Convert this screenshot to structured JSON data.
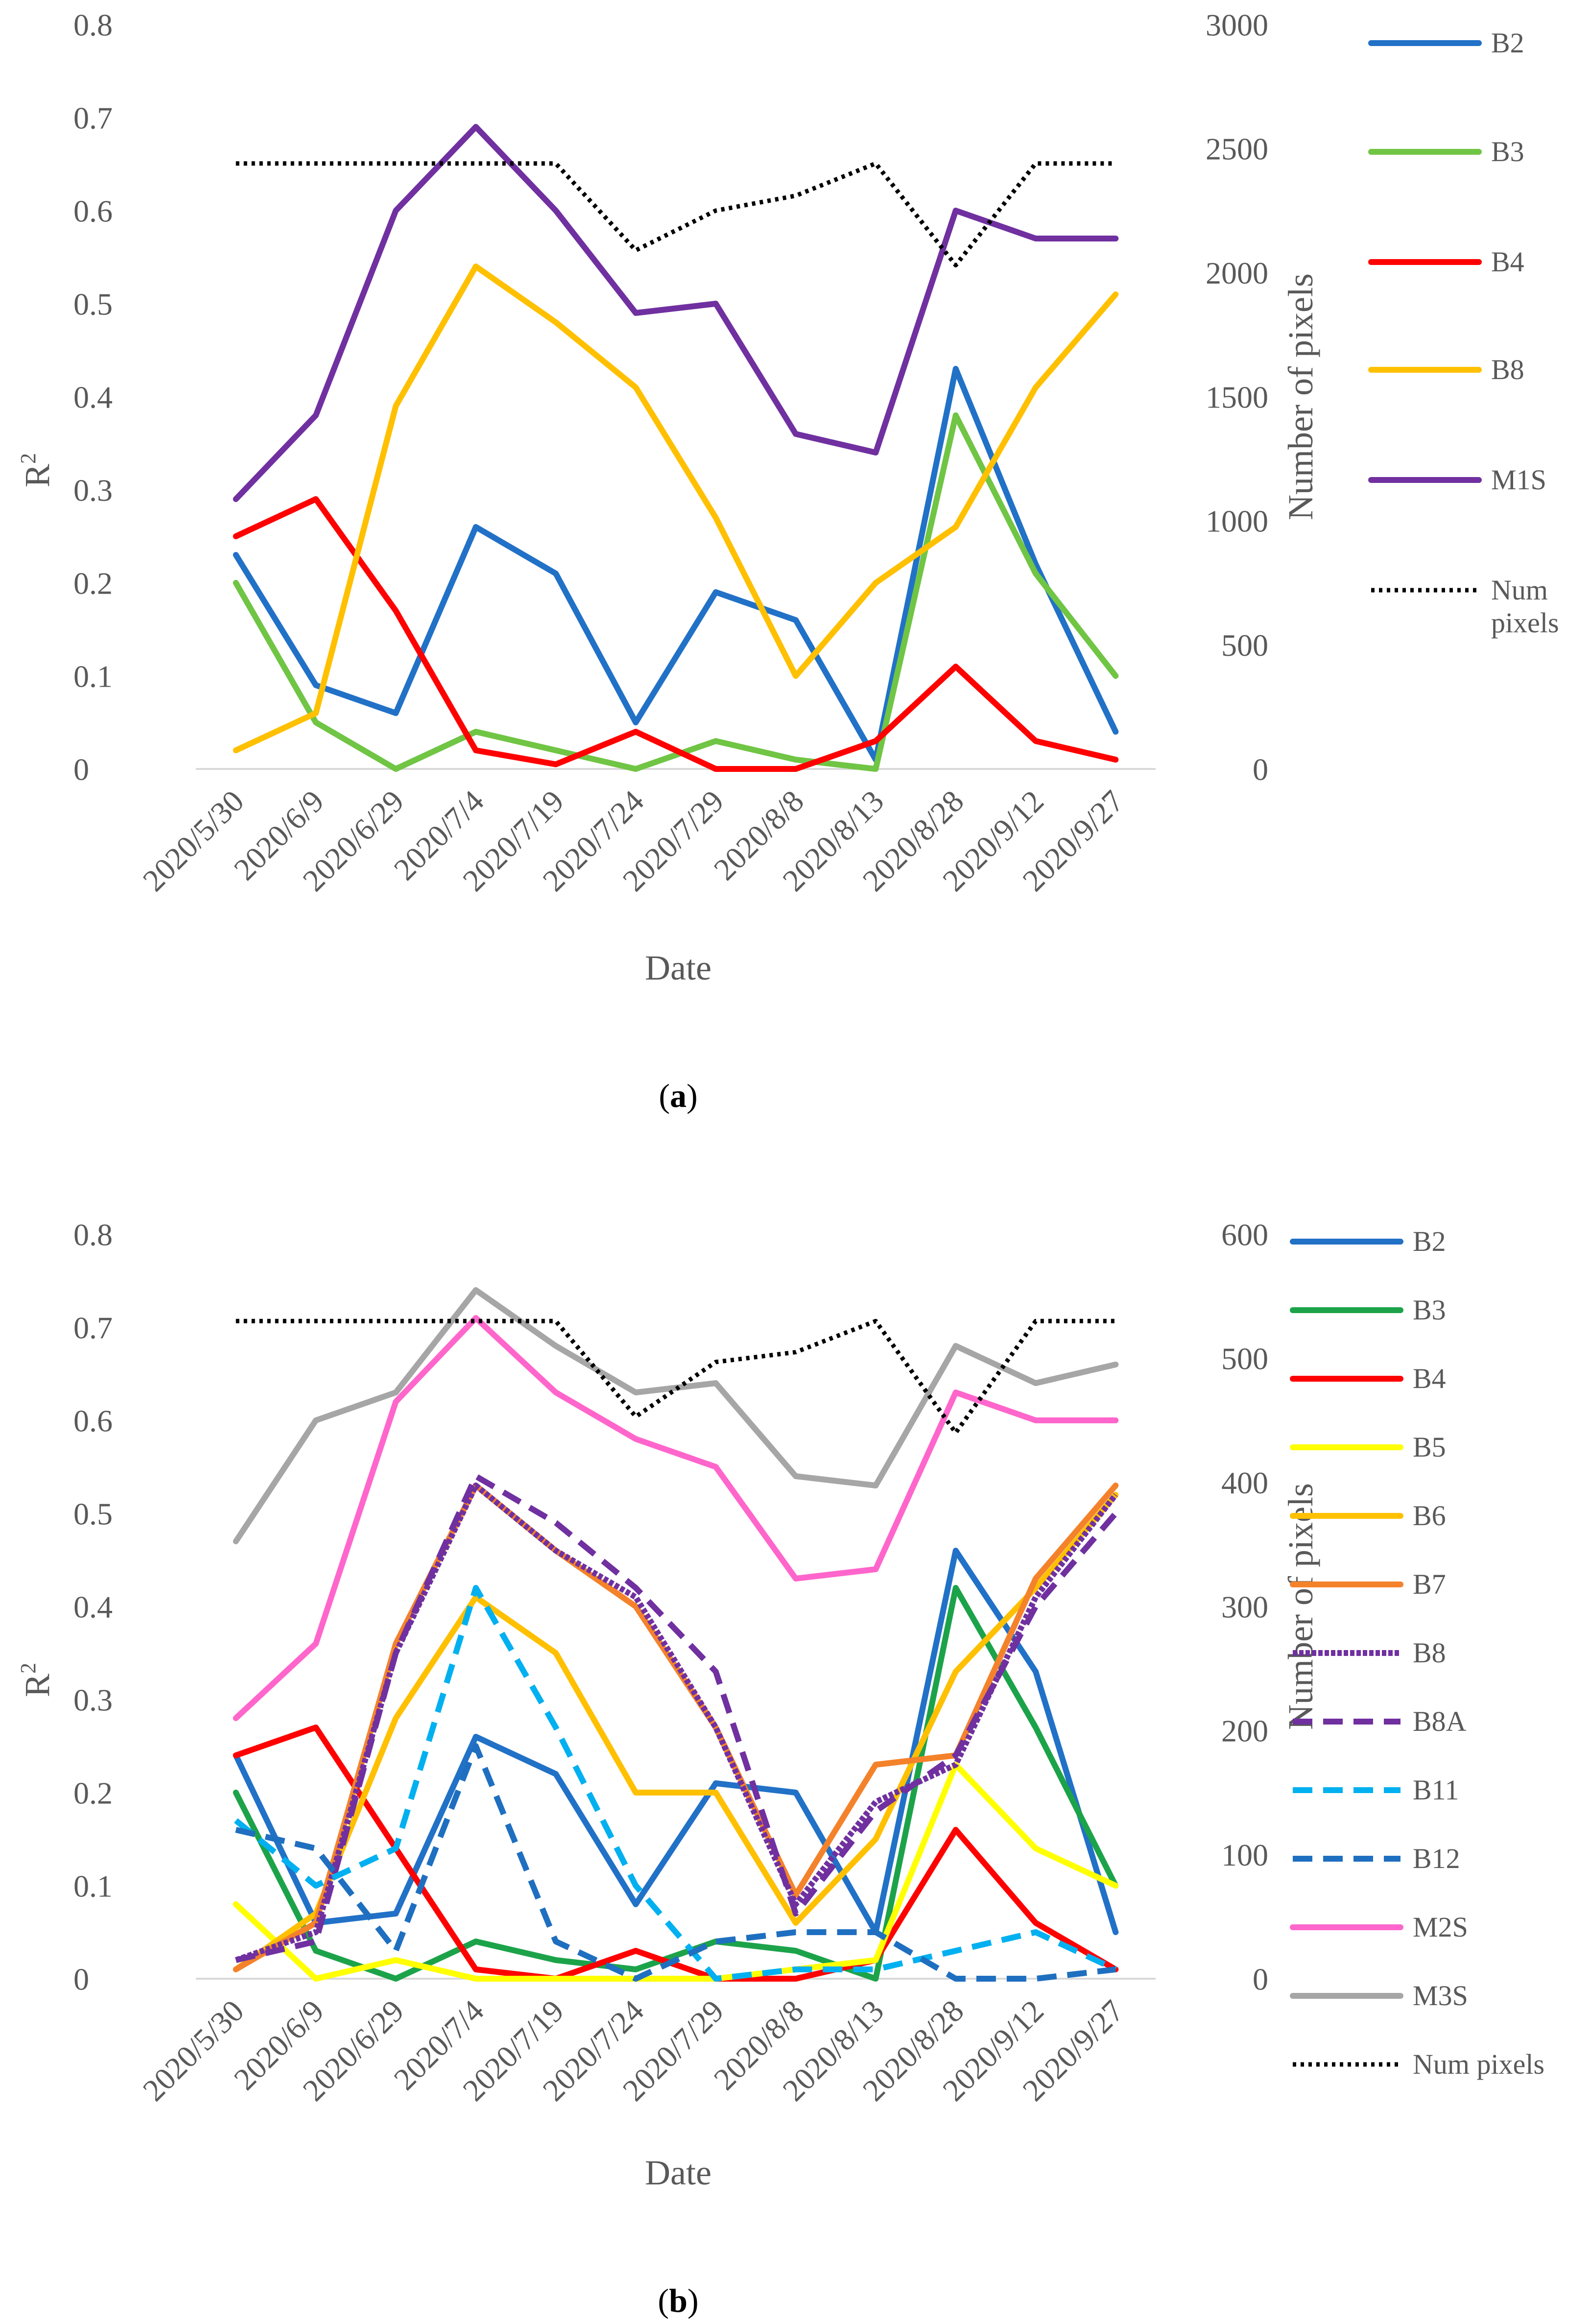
{
  "chart_data": [
    {
      "type": "line",
      "categories": [
        "2020/5/30",
        "2020/6/9",
        "2020/6/29",
        "2020/7/4",
        "2020/7/19",
        "2020/7/24",
        "2020/7/29",
        "2020/8/8",
        "2020/8/13",
        "2020/8/28",
        "2020/9/12",
        "2020/9/27"
      ],
      "caption": "(a)",
      "xlabel": "Date",
      "ylabel": "R",
      "ylabel_sup": "2",
      "y2label": "Number of pixels",
      "ylim": [
        0,
        0.8
      ],
      "y_ticks": [
        "0",
        "0.1",
        "0.2",
        "0.3",
        "0.4",
        "0.5",
        "0.6",
        "0.7",
        "0.8"
      ],
      "y2lim": [
        0,
        3000
      ],
      "y2_ticks": [
        "0",
        "500",
        "1000",
        "1500",
        "2000",
        "2500",
        "3000"
      ],
      "legend_position": "right",
      "series": [
        {
          "name": "B2",
          "color": "#2171c7",
          "dash": "solid",
          "axis": "left",
          "values": [
            0.23,
            0.09,
            0.06,
            0.26,
            0.21,
            0.05,
            0.19,
            0.16,
            0.01,
            0.43,
            0.22,
            0.04
          ]
        },
        {
          "name": "B3",
          "color": "#70c544",
          "dash": "solid",
          "axis": "left",
          "values": [
            0.2,
            0.05,
            0.0,
            0.04,
            0.02,
            0.0,
            0.03,
            0.01,
            0.0,
            0.38,
            0.21,
            0.1
          ]
        },
        {
          "name": "B4",
          "color": "#ff0000",
          "dash": "solid",
          "axis": "left",
          "values": [
            0.25,
            0.29,
            0.17,
            0.02,
            0.005,
            0.04,
            0.0,
            0.0,
            0.03,
            0.11,
            0.03,
            0.01
          ]
        },
        {
          "name": "B8",
          "color": "#ffc000",
          "dash": "solid",
          "axis": "left",
          "values": [
            0.02,
            0.06,
            0.39,
            0.54,
            0.48,
            0.41,
            0.27,
            0.1,
            0.2,
            0.26,
            0.41,
            0.51
          ]
        },
        {
          "name": "M1S",
          "color": "#7030a0",
          "dash": "solid",
          "axis": "left",
          "values": [
            0.29,
            0.38,
            0.6,
            0.69,
            0.6,
            0.49,
            0.5,
            0.36,
            0.34,
            0.6,
            0.57,
            0.57
          ]
        },
        {
          "name": "Num pixels",
          "color": "#000000",
          "dash": "dot",
          "axis": "right",
          "values": [
            2440,
            2440,
            2440,
            2440,
            2440,
            2090,
            2250,
            2310,
            2440,
            2030,
            2440,
            2440
          ]
        }
      ]
    },
    {
      "type": "line",
      "categories": [
        "2020/5/30",
        "2020/6/9",
        "2020/6/29",
        "2020/7/4",
        "2020/7/19",
        "2020/7/24",
        "2020/7/29",
        "2020/8/8",
        "2020/8/13",
        "2020/8/28",
        "2020/9/12",
        "2020/9/27"
      ],
      "caption": "(b)",
      "xlabel": "Date",
      "ylabel": "R",
      "ylabel_sup": "2",
      "y2label": "Number of pixels",
      "ylim": [
        0,
        0.8
      ],
      "y_ticks": [
        "0",
        "0.1",
        "0.2",
        "0.3",
        "0.4",
        "0.5",
        "0.6",
        "0.7",
        "0.8"
      ],
      "y2lim": [
        0,
        600
      ],
      "y2_ticks": [
        "0",
        "100",
        "200",
        "300",
        "400",
        "500",
        "600"
      ],
      "legend_position": "right",
      "series": [
        {
          "name": "B2",
          "color": "#2171c7",
          "dash": "solid",
          "axis": "left",
          "values": [
            0.24,
            0.06,
            0.07,
            0.26,
            0.22,
            0.08,
            0.21,
            0.2,
            0.05,
            0.46,
            0.33,
            0.05
          ]
        },
        {
          "name": "B3",
          "color": "#1ca34a",
          "dash": "solid",
          "axis": "left",
          "values": [
            0.2,
            0.03,
            0.0,
            0.04,
            0.02,
            0.01,
            0.04,
            0.03,
            0.0,
            0.42,
            0.27,
            0.1
          ]
        },
        {
          "name": "B4",
          "color": "#ff0000",
          "dash": "solid",
          "axis": "left",
          "values": [
            0.24,
            0.27,
            0.14,
            0.01,
            0.0,
            0.03,
            0.0,
            0.0,
            0.02,
            0.16,
            0.06,
            0.01
          ]
        },
        {
          "name": "B5",
          "color": "#ffff00",
          "dash": "solid",
          "axis": "left",
          "values": [
            0.08,
            0.0,
            0.02,
            0.0,
            0.0,
            0.0,
            0.0,
            0.01,
            0.02,
            0.23,
            0.14,
            0.1
          ]
        },
        {
          "name": "B6",
          "color": "#ffc000",
          "dash": "solid",
          "axis": "left",
          "values": [
            0.01,
            0.07,
            0.28,
            0.41,
            0.35,
            0.2,
            0.2,
            0.06,
            0.15,
            0.33,
            0.42,
            0.52
          ]
        },
        {
          "name": "B7",
          "color": "#f4822b",
          "dash": "solid",
          "axis": "left",
          "values": [
            0.01,
            0.06,
            0.36,
            0.53,
            0.46,
            0.4,
            0.27,
            0.09,
            0.23,
            0.24,
            0.43,
            0.53
          ]
        },
        {
          "name": "B8",
          "color": "#7030a0",
          "dash": "dotline",
          "axis": "left",
          "values": [
            0.02,
            0.05,
            0.35,
            0.53,
            0.46,
            0.41,
            0.27,
            0.08,
            0.19,
            0.23,
            0.41,
            0.52
          ]
        },
        {
          "name": "B8A",
          "color": "#7030a0",
          "dash": "dash",
          "axis": "left",
          "values": [
            0.02,
            0.04,
            0.35,
            0.54,
            0.49,
            0.42,
            0.33,
            0.07,
            0.18,
            0.24,
            0.4,
            0.5
          ]
        },
        {
          "name": "B11",
          "color": "#00b0f0",
          "dash": "dash",
          "axis": "left",
          "values": [
            0.17,
            0.1,
            0.14,
            0.42,
            0.27,
            0.1,
            0.0,
            0.01,
            0.01,
            0.03,
            0.05,
            0.01
          ]
        },
        {
          "name": "B12",
          "color": "#1f6fc0",
          "dash": "dash",
          "axis": "left",
          "values": [
            0.16,
            0.14,
            0.03,
            0.25,
            0.04,
            0.0,
            0.04,
            0.05,
            0.05,
            0.0,
            0.0,
            0.01
          ]
        },
        {
          "name": "M2S",
          "color": "#ff66cc",
          "dash": "solid",
          "axis": "left",
          "values": [
            0.28,
            0.36,
            0.62,
            0.71,
            0.63,
            0.58,
            0.55,
            0.43,
            0.44,
            0.63,
            0.6,
            0.6
          ]
        },
        {
          "name": "M3S",
          "color": "#a6a6a6",
          "dash": "solid",
          "axis": "left",
          "values": [
            0.47,
            0.6,
            0.63,
            0.74,
            0.68,
            0.63,
            0.64,
            0.54,
            0.53,
            0.68,
            0.64,
            0.66
          ]
        },
        {
          "name": "Num pixels",
          "color": "#000000",
          "dash": "dot",
          "axis": "right",
          "values": [
            530,
            530,
            530,
            530,
            530,
            453,
            497,
            505,
            530,
            440,
            530,
            530
          ]
        }
      ]
    }
  ]
}
